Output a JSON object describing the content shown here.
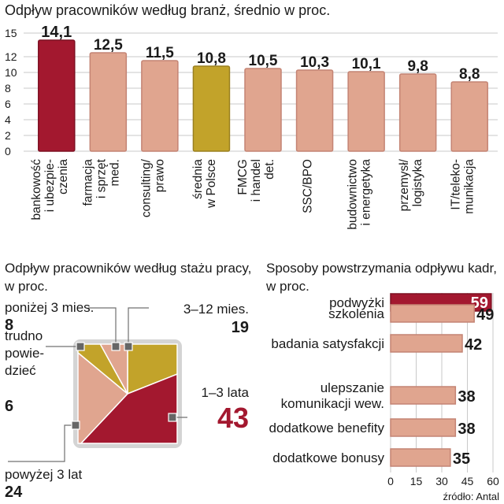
{
  "colors": {
    "highlight": "#a3182f",
    "average": "#c2a32a",
    "bar": "#e0a58f",
    "bar_outline": "#c48474",
    "grid": "#c9c9c9",
    "text": "#1a1a1a",
    "frame": "#d4d4d4",
    "marker": "#707070"
  },
  "source": "źródło: Antal",
  "chart_data": [
    {
      "type": "bar",
      "title": "Odpływ pracowników według branż, średnio w proc.",
      "ylim": [
        0,
        15
      ],
      "yticks": [
        0,
        2,
        4,
        6,
        8,
        10,
        12,
        15
      ],
      "grid": true,
      "categories": [
        [
          "bankowość",
          "i ubezpie-",
          "czenia"
        ],
        [
          "farmacja",
          "i sprzęt",
          "med."
        ],
        [
          "consulting/",
          "prawo"
        ],
        [
          "średnia",
          "w Polsce"
        ],
        [
          "FMCG",
          "i handel",
          "det."
        ],
        [
          "SSC/BPO"
        ],
        [
          "budownictwo",
          "i energetyka"
        ],
        [
          "przemysł/",
          "logistyka"
        ],
        [
          "IT/teleko-",
          "munikacja"
        ]
      ],
      "values": [
        14.1,
        12.5,
        11.5,
        10.8,
        10.5,
        10.3,
        10.1,
        9.8,
        8.8
      ],
      "value_labels": [
        "14,1",
        "12,5",
        "11,5",
        "10,8",
        "10,5",
        "10,3",
        "10,1",
        "9,8",
        "8,8"
      ],
      "highlight_index": 0,
      "average_index": 3
    },
    {
      "type": "pie",
      "title": [
        "Odpływ pracowników według stażu pracy,",
        "w proc."
      ],
      "slices": [
        {
          "label": "3–12 mies.",
          "value": 19,
          "color": "#c2a32a"
        },
        {
          "label": "1–3 lata",
          "value": 43,
          "color": "#a3182f"
        },
        {
          "label": "powyżej 3 lat",
          "value": 24,
          "color": "#e0a58f"
        },
        {
          "label": "trudno powie-dzieć",
          "value": 6,
          "color": "#c2a32a"
        },
        {
          "label": "poniżej 3 mies.",
          "value": 8,
          "color": "#e0a58f"
        }
      ],
      "callouts": [
        {
          "lines": [
            "3–12 mies."
          ],
          "value": "19"
        },
        {
          "lines": [
            "1–3 lata"
          ],
          "value": "43"
        },
        {
          "lines": [
            "powyżej 3 lat"
          ],
          "value": "24"
        },
        {
          "lines": [
            "trudno",
            "powie-",
            "dzieć"
          ],
          "value": "6"
        },
        {
          "lines": [
            "poniżej 3 mies."
          ],
          "value": "8"
        }
      ]
    },
    {
      "type": "bar",
      "orientation": "horizontal",
      "title": [
        "Sposoby powstrzymania odpływu kadr,",
        "w proc."
      ],
      "xlim": [
        0,
        60
      ],
      "xticks": [
        0,
        15,
        30,
        45,
        60
      ],
      "categories": [
        [
          "podwyżki"
        ],
        [
          "szkolenia"
        ],
        [
          "badania satysfakcji"
        ],
        [
          "ulepszanie",
          "komunikacji wew."
        ],
        [
          "dodatkowe benefity"
        ],
        [
          "dodatkowe bonusy"
        ]
      ],
      "values": [
        59,
        49,
        42,
        38,
        38,
        35
      ],
      "highlight_index": 0
    }
  ]
}
